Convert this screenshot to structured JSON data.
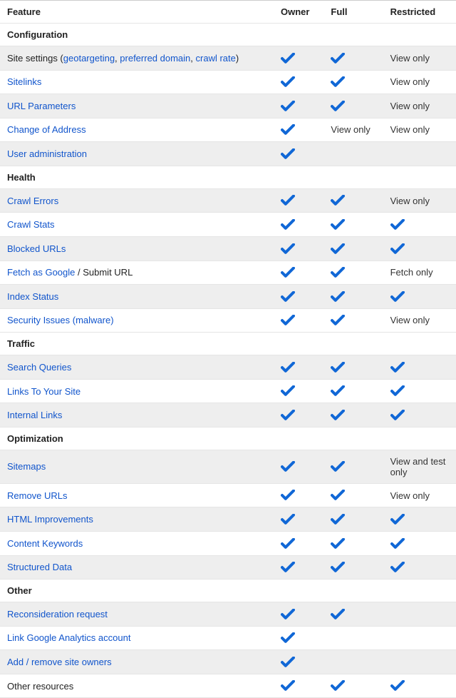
{
  "colors": {
    "link": "#1155cc",
    "check": "#1067d6",
    "text": "#222222",
    "shade": "#eeeeee",
    "border": "#e5e5e5"
  },
  "header": {
    "feature": "Feature",
    "owner": "Owner",
    "full": "Full",
    "restricted": "Restricted"
  },
  "sections": [
    {
      "title": "Configuration",
      "rows": [
        {
          "shade": true,
          "feature_parts": [
            {
              "text": "Site settings (",
              "link": false
            },
            {
              "text": "geotargeting",
              "link": true
            },
            {
              "text": ", ",
              "link": false
            },
            {
              "text": "preferred domain",
              "link": true
            },
            {
              "text": ", ",
              "link": false
            },
            {
              "text": "crawl rate",
              "link": true
            },
            {
              "text": ")",
              "link": false
            }
          ],
          "owner": "check",
          "full": "check",
          "restricted": "View only"
        },
        {
          "shade": false,
          "feature_parts": [
            {
              "text": "Sitelinks",
              "link": true
            }
          ],
          "owner": "check",
          "full": "check",
          "restricted": "View only"
        },
        {
          "shade": true,
          "feature_parts": [
            {
              "text": "URL Parameters",
              "link": true
            }
          ],
          "owner": "check",
          "full": "check",
          "restricted": "View only"
        },
        {
          "shade": false,
          "feature_parts": [
            {
              "text": "Change of Address",
              "link": true
            }
          ],
          "owner": "check",
          "full": "View only",
          "restricted": "View only"
        },
        {
          "shade": true,
          "feature_parts": [
            {
              "text": "User administration",
              "link": true
            }
          ],
          "owner": "check",
          "full": "",
          "restricted": ""
        }
      ]
    },
    {
      "title": "Health",
      "rows": [
        {
          "shade": true,
          "feature_parts": [
            {
              "text": "Crawl Errors",
              "link": true
            }
          ],
          "owner": "check",
          "full": "check",
          "restricted": "View only"
        },
        {
          "shade": false,
          "feature_parts": [
            {
              "text": "Crawl Stats",
              "link": true
            }
          ],
          "owner": "check",
          "full": "check",
          "restricted": "check"
        },
        {
          "shade": true,
          "feature_parts": [
            {
              "text": "Blocked URLs",
              "link": true
            }
          ],
          "owner": "check",
          "full": "check",
          "restricted": "check"
        },
        {
          "shade": false,
          "feature_parts": [
            {
              "text": "Fetch as Google",
              "link": true
            },
            {
              "text": " / Submit URL",
              "link": false
            }
          ],
          "owner": "check",
          "full": "check",
          "restricted": "Fetch only"
        },
        {
          "shade": true,
          "feature_parts": [
            {
              "text": "Index Status",
              "link": true
            }
          ],
          "owner": "check",
          "full": "check",
          "restricted": "check"
        },
        {
          "shade": false,
          "feature_parts": [
            {
              "text": "Security Issues (malware)",
              "link": true
            }
          ],
          "owner": "check",
          "full": "check",
          "restricted": "View only"
        }
      ]
    },
    {
      "title": "Traffic",
      "rows": [
        {
          "shade": true,
          "feature_parts": [
            {
              "text": "Search Queries",
              "link": true
            }
          ],
          "owner": "check",
          "full": "check",
          "restricted": "check"
        },
        {
          "shade": false,
          "feature_parts": [
            {
              "text": "Links To Your Site",
              "link": true
            }
          ],
          "owner": "check",
          "full": "check",
          "restricted": "check"
        },
        {
          "shade": true,
          "feature_parts": [
            {
              "text": "Internal Links",
              "link": true
            }
          ],
          "owner": "check",
          "full": "check",
          "restricted": "check"
        }
      ]
    },
    {
      "title": "Optimization",
      "rows": [
        {
          "shade": true,
          "feature_parts": [
            {
              "text": "Sitemaps",
              "link": true
            }
          ],
          "owner": "check",
          "full": "check",
          "restricted": "View and test only"
        },
        {
          "shade": false,
          "feature_parts": [
            {
              "text": "Remove URLs",
              "link": true
            }
          ],
          "owner": "check",
          "full": "check",
          "restricted": "View only"
        },
        {
          "shade": true,
          "feature_parts": [
            {
              "text": "HTML Improvements",
              "link": true
            }
          ],
          "owner": "check",
          "full": "check",
          "restricted": "check"
        },
        {
          "shade": false,
          "feature_parts": [
            {
              "text": "Content Keywords",
              "link": true
            }
          ],
          "owner": "check",
          "full": "check",
          "restricted": "check"
        },
        {
          "shade": true,
          "feature_parts": [
            {
              "text": "Structured Data",
              "link": true
            }
          ],
          "owner": "check",
          "full": "check",
          "restricted": "check"
        }
      ]
    },
    {
      "title": "Other",
      "rows": [
        {
          "shade": true,
          "feature_parts": [
            {
              "text": "Reconsideration request",
              "link": true
            }
          ],
          "owner": "check",
          "full": "check",
          "restricted": ""
        },
        {
          "shade": false,
          "feature_parts": [
            {
              "text": "Link Google Analytics account",
              "link": true
            }
          ],
          "owner": "check",
          "full": "",
          "restricted": ""
        },
        {
          "shade": true,
          "feature_parts": [
            {
              "text": "Add / remove site owners",
              "link": true
            }
          ],
          "owner": "check",
          "full": "",
          "restricted": ""
        },
        {
          "shade": false,
          "feature_parts": [
            {
              "text": "Other resources",
              "link": false
            }
          ],
          "owner": "check",
          "full": "check",
          "restricted": "check"
        }
      ]
    }
  ]
}
